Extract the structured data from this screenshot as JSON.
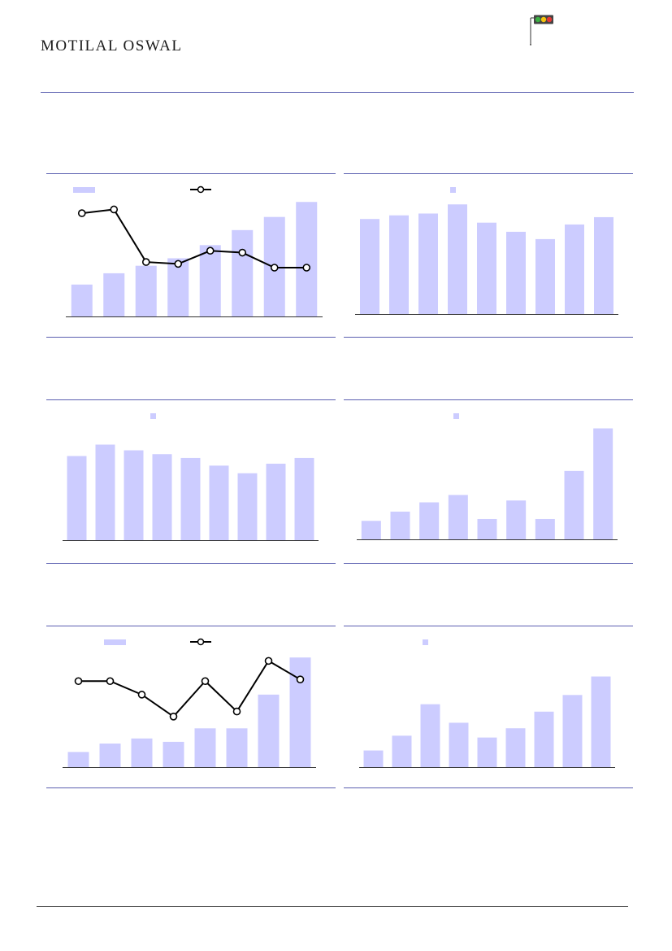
{
  "header": {
    "brand_first": "M",
    "brand_rest": "OTILAL ",
    "brand_second": "O",
    "brand_tail": "SWAL"
  },
  "colors": {
    "rule": "#5b5fb0",
    "bar": "#ccccff",
    "line": "#000000"
  },
  "chart_data": [
    {
      "type": "bar",
      "legend": {
        "bar": true,
        "line": true
      },
      "categories": [
        "",
        "",
        "",
        "",
        "",
        "",
        "",
        ""
      ],
      "series": [
        {
          "values": [
            17,
            23,
            27,
            31,
            38,
            46,
            53,
            61
          ]
        },
        {
          "type": "line",
          "values": [
            55,
            57,
            29,
            28,
            35,
            34,
            26,
            26
          ]
        }
      ],
      "ylim": [
        0,
        65
      ]
    },
    {
      "type": "bar",
      "legend": {
        "bar": true,
        "line": false
      },
      "categories": [
        "",
        "",
        "",
        "",
        "",
        "",
        "",
        "",
        ""
      ],
      "series": [
        {
          "values": [
            52,
            54,
            55,
            60,
            50,
            45,
            41,
            49,
            53
          ]
        }
      ],
      "ylim": [
        0,
        65
      ]
    },
    {
      "type": "bar",
      "legend": {
        "bar": true,
        "line": false
      },
      "categories": [
        "",
        "",
        "",
        "",
        "",
        "",
        "",
        "",
        ""
      ],
      "series": [
        {
          "values": [
            44,
            50,
            47,
            45,
            43,
            39,
            35,
            40,
            43
          ]
        }
      ],
      "ylim": [
        0,
        60
      ]
    },
    {
      "type": "bar",
      "legend": {
        "bar": true,
        "line": false
      },
      "categories": [
        "",
        "",
        "",
        "",
        "",
        "",
        "",
        "",
        ""
      ],
      "series": [
        {
          "values": [
            10,
            15,
            20,
            24,
            11,
            21,
            11,
            37,
            60
          ]
        }
      ],
      "ylim": [
        0,
        62
      ]
    },
    {
      "type": "bar",
      "legend": {
        "bar": true,
        "line": true
      },
      "categories": [
        "",
        "",
        "",
        "",
        "",
        "",
        "",
        ""
      ],
      "series": [
        {
          "values": [
            9,
            14,
            17,
            15,
            23,
            23,
            43,
            65
          ]
        },
        {
          "type": "line",
          "values": [
            51,
            51,
            43,
            30,
            51,
            33,
            63,
            52
          ]
        }
      ],
      "ylim": [
        0,
        68
      ]
    },
    {
      "type": "bar",
      "legend": {
        "bar": true,
        "line": false
      },
      "categories": [
        "",
        "",
        "",
        "",
        "",
        "",
        "",
        "",
        ""
      ],
      "series": [
        {
          "values": [
            9,
            17,
            34,
            24,
            16,
            21,
            30,
            39,
            49
          ]
        }
      ],
      "ylim": [
        0,
        62
      ]
    }
  ]
}
